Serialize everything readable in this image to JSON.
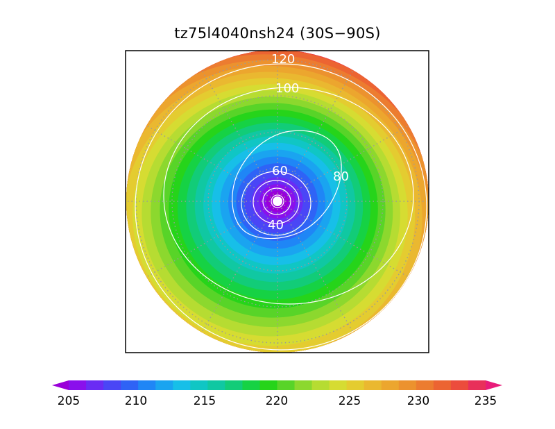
{
  "title": "tz75l4040nsh24 (30S−90S)",
  "map": {
    "region": "30S−90S",
    "projection": "polar stereographic (south)",
    "field_palette": [
      "#9a00d8",
      "#8a10ec",
      "#6a2cf4",
      "#4a46f6",
      "#2f63f6",
      "#1f86f6",
      "#1aa4f0",
      "#17bfe8",
      "#10c6c4",
      "#10c8a2",
      "#12cc78",
      "#16d244",
      "#26d41a",
      "#58d428",
      "#8cd82e",
      "#b6dc32",
      "#d6dc32",
      "#e4cc30",
      "#eab830",
      "#eca62e",
      "#ec922e",
      "#ec7c30",
      "#ec6432",
      "#ec4c3c",
      "#e8305a",
      "#e81c7a"
    ],
    "contour_labels": [
      {
        "text": "120",
        "value": 120
      },
      {
        "text": "100",
        "value": 100
      },
      {
        "text": "80",
        "value": 80
      },
      {
        "text": "60",
        "value": 60
      },
      {
        "text": "40",
        "value": 40
      }
    ],
    "contour_color": "#ffffff",
    "grid_color": "#9a9a9a"
  },
  "colorbar": {
    "min": 205,
    "max": 235,
    "step": 1.25,
    "tick_labels": [
      "205",
      "210",
      "215",
      "220",
      "225",
      "230",
      "235"
    ],
    "tick_values": [
      205,
      210,
      215,
      220,
      225,
      230,
      235
    ],
    "arrow_low_color": "#9a00d8",
    "arrow_high_color": "#e81c7a"
  }
}
